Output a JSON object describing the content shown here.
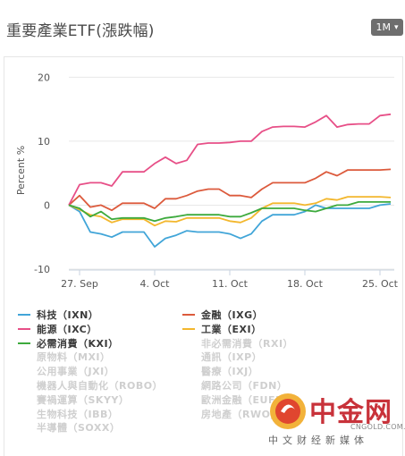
{
  "header": {
    "title": "重要產業ETF(漲跌幅)",
    "range_button": "1M"
  },
  "chart_data": {
    "type": "line",
    "ylabel": "Percent %",
    "ylim": [
      -10,
      22
    ],
    "yticks": [
      -10,
      0,
      10,
      20
    ],
    "x": [
      "9/26",
      "9/27",
      "9/28",
      "9/29",
      "9/30",
      "10/1",
      "10/2",
      "10/3",
      "10/4",
      "10/5",
      "10/6",
      "10/7",
      "10/8",
      "10/9",
      "10/10",
      "10/11",
      "10/12",
      "10/13",
      "10/14",
      "10/15",
      "10/16",
      "10/17",
      "10/18",
      "10/19",
      "10/20",
      "10/21",
      "10/22",
      "10/23",
      "10/24",
      "10/25",
      "10/26"
    ],
    "xticks": [
      {
        "label": "27. Sep",
        "index": 1
      },
      {
        "label": "4. Oct",
        "index": 8
      },
      {
        "label": "11. Oct",
        "index": 15
      },
      {
        "label": "18. Oct",
        "index": 22
      },
      {
        "label": "25. Oct",
        "index": 29
      }
    ],
    "series": [
      {
        "name": "科技（IXN）",
        "color": "#41a5d8",
        "values": [
          0,
          -1,
          -4.2,
          -4.5,
          -5,
          -4.2,
          -4.2,
          -4.2,
          -6.5,
          -5.2,
          -4.7,
          -4,
          -4.2,
          -4.2,
          -4.2,
          -4.5,
          -5.2,
          -4.5,
          -2.5,
          -1.5,
          -1.5,
          -1.5,
          -1,
          0,
          -0.5,
          -0.5,
          -0.5,
          -0.5,
          -0.5,
          0,
          0.2
        ]
      },
      {
        "name": "金融（IXG）",
        "color": "#dc5a3c",
        "values": [
          0,
          1.5,
          -0.3,
          0,
          -0.8,
          0.3,
          0.3,
          0.3,
          -0.5,
          1,
          1,
          1.5,
          2.2,
          2.5,
          2.5,
          1.5,
          1.5,
          1.2,
          2.5,
          3.5,
          3.5,
          3.5,
          3.5,
          4.2,
          5.2,
          4.6,
          5.5,
          5.5,
          5.5,
          5.5,
          5.6
        ]
      },
      {
        "name": "能源（IXC）",
        "color": "#e74f87",
        "values": [
          0,
          3.2,
          3.5,
          3.5,
          3,
          5.2,
          5.2,
          5.2,
          6.5,
          7.5,
          6.5,
          7,
          9.5,
          9.7,
          9.7,
          9.8,
          10,
          10,
          11.5,
          12.2,
          12.3,
          12.3,
          12.2,
          13,
          14,
          12.2,
          12.6,
          12.7,
          12.7,
          14,
          14.2
        ]
      },
      {
        "name": "工業（EXI）",
        "color": "#f3b72d",
        "values": [
          0,
          -0.7,
          -1.5,
          -1.8,
          -2.7,
          -2.2,
          -2.2,
          -2.2,
          -3.2,
          -2.5,
          -2.6,
          -2,
          -2,
          -2,
          -2,
          -2.5,
          -2.7,
          -2,
          -0.5,
          0.3,
          0.3,
          0.3,
          0,
          0.3,
          1,
          0.8,
          1.3,
          1.3,
          1.3,
          1.3,
          1.2
        ]
      },
      {
        "name": "必需消費（KXI）",
        "color": "#3daa3d",
        "values": [
          0,
          -0.5,
          -1.8,
          -1,
          -2.2,
          -2,
          -2,
          -2,
          -2.5,
          -2,
          -1.8,
          -1.5,
          -1.5,
          -1.5,
          -1.5,
          -1.8,
          -1.8,
          -1.2,
          -0.5,
          -0.5,
          -0.5,
          -0.5,
          -0.8,
          -1,
          -0.5,
          0,
          0,
          0.5,
          0.5,
          0.5,
          0.5
        ]
      }
    ]
  },
  "legend": {
    "active": [
      {
        "label": "科技（IXN）",
        "color": "#41a5d8"
      },
      {
        "label": "金融（IXG）",
        "color": "#dc5a3c"
      },
      {
        "label": "能源（IXC）",
        "color": "#e74f87"
      },
      {
        "label": "工業（EXI）",
        "color": "#f3b72d"
      },
      {
        "label": "必需消費（KXI）",
        "color": "#3daa3d"
      }
    ],
    "inactive": [
      {
        "label": "非必需消費（RXI）"
      },
      {
        "label": "原物料（MXI）"
      },
      {
        "label": "通訊（IXP）"
      },
      {
        "label": "公用事業（JXI）"
      },
      {
        "label": "醫療（IXJ）"
      },
      {
        "label": "機器人與自動化（ROBO）"
      },
      {
        "label": "網路公司（FDN）"
      },
      {
        "label": "賽禍運算（SKYY）"
      },
      {
        "label": "歐洲金融（EUFN）"
      },
      {
        "label": "生物科技（IBB）"
      },
      {
        "label": "房地產（RWO）"
      },
      {
        "label": "半導體（SOXX）"
      }
    ],
    "inactive_color": "#d0d0d0"
  },
  "watermark": {
    "brand": "中金网",
    "url": "CNGOLD.COM.CN",
    "tagline": "中文财经新媒体"
  }
}
